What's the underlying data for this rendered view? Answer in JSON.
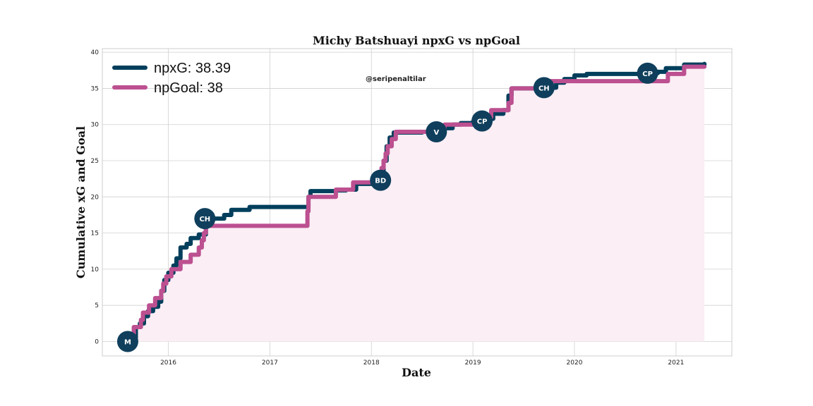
{
  "chart_data": {
    "type": "line",
    "title": "Michy Batshuayi npxG vs npGoal",
    "xlabel": "Date",
    "ylabel": "Cumulative xG and Goal",
    "credit": "@seripenaltilar",
    "xlim": [
      2015.35,
      2021.55
    ],
    "ylim": [
      -2,
      40.5
    ],
    "xticks": [
      2016,
      2017,
      2018,
      2019,
      2020,
      2021
    ],
    "yticks": [
      0,
      5,
      10,
      15,
      20,
      25,
      30,
      35,
      40
    ],
    "grid": true,
    "legend_position": "top-left",
    "series": [
      {
        "key": "npxg",
        "name": "npxG: 38.39",
        "color": "#003f5c",
        "points": [
          [
            2015.6,
            0
          ],
          [
            2015.65,
            0.5
          ],
          [
            2015.68,
            2.0
          ],
          [
            2015.72,
            2.5
          ],
          [
            2015.76,
            3.5
          ],
          [
            2015.8,
            4.2
          ],
          [
            2015.85,
            4.8
          ],
          [
            2015.9,
            5.5
          ],
          [
            2015.93,
            7.0
          ],
          [
            2015.96,
            8.5
          ],
          [
            2016.0,
            9.5
          ],
          [
            2016.05,
            10.5
          ],
          [
            2016.08,
            11.5
          ],
          [
            2016.12,
            13.0
          ],
          [
            2016.18,
            13.5
          ],
          [
            2016.22,
            14.3
          ],
          [
            2016.3,
            14.8
          ],
          [
            2016.37,
            17.0
          ],
          [
            2016.55,
            17.5
          ],
          [
            2016.62,
            18.2
          ],
          [
            2016.8,
            18.6
          ],
          [
            2017.38,
            20.0
          ],
          [
            2017.4,
            20.8
          ],
          [
            2017.65,
            20.9
          ],
          [
            2017.75,
            21.0
          ],
          [
            2017.85,
            21.8
          ],
          [
            2018.0,
            22.0
          ],
          [
            2018.05,
            22.3
          ],
          [
            2018.08,
            23.0
          ],
          [
            2018.12,
            25.0
          ],
          [
            2018.15,
            27.0
          ],
          [
            2018.18,
            28.2
          ],
          [
            2018.22,
            28.9
          ],
          [
            2018.5,
            29.0
          ],
          [
            2018.68,
            29.5
          ],
          [
            2018.8,
            30.0
          ],
          [
            2018.88,
            30.2
          ],
          [
            2019.0,
            30.4
          ],
          [
            2019.12,
            30.8
          ],
          [
            2019.2,
            31.5
          ],
          [
            2019.3,
            32.0
          ],
          [
            2019.35,
            34.0
          ],
          [
            2019.38,
            35.0
          ],
          [
            2019.7,
            35.1
          ],
          [
            2019.82,
            35.8
          ],
          [
            2019.9,
            36.3
          ],
          [
            2020.0,
            36.8
          ],
          [
            2020.12,
            37.0
          ],
          [
            2020.72,
            37.1
          ],
          [
            2020.82,
            37.3
          ],
          [
            2020.9,
            37.8
          ],
          [
            2021.08,
            38.3
          ],
          [
            2021.28,
            38.39
          ]
        ]
      },
      {
        "key": "npgoal",
        "name": "npGoal: 38",
        "color": "#bc5090",
        "points": [
          [
            2015.6,
            0
          ],
          [
            2015.66,
            2
          ],
          [
            2015.73,
            3
          ],
          [
            2015.75,
            4
          ],
          [
            2015.81,
            5
          ],
          [
            2015.87,
            6
          ],
          [
            2015.93,
            7
          ],
          [
            2015.95,
            8
          ],
          [
            2015.98,
            9
          ],
          [
            2016.03,
            10
          ],
          [
            2016.12,
            11
          ],
          [
            2016.22,
            12
          ],
          [
            2016.3,
            13
          ],
          [
            2016.33,
            14
          ],
          [
            2016.35,
            15
          ],
          [
            2016.37,
            16
          ],
          [
            2017.37,
            18
          ],
          [
            2017.38,
            20
          ],
          [
            2017.65,
            21
          ],
          [
            2017.82,
            22
          ],
          [
            2018.1,
            24
          ],
          [
            2018.12,
            25
          ],
          [
            2018.14,
            26
          ],
          [
            2018.16,
            27
          ],
          [
            2018.2,
            28
          ],
          [
            2018.24,
            29
          ],
          [
            2018.72,
            30
          ],
          [
            2019.15,
            31
          ],
          [
            2019.18,
            32
          ],
          [
            2019.35,
            33
          ],
          [
            2019.38,
            35
          ],
          [
            2019.7,
            35
          ],
          [
            2019.73,
            36
          ],
          [
            2020.92,
            37
          ],
          [
            2021.08,
            38
          ],
          [
            2021.28,
            38
          ]
        ]
      }
    ],
    "markers": [
      {
        "label": "M",
        "x": 2015.6,
        "y": 0
      },
      {
        "label": "CH",
        "x": 2016.36,
        "y": 17
      },
      {
        "label": "BD",
        "x": 2018.09,
        "y": 22.3
      },
      {
        "label": "V",
        "x": 2018.64,
        "y": 29
      },
      {
        "label": "CP",
        "x": 2019.09,
        "y": 30.5
      },
      {
        "label": "CH",
        "x": 2019.7,
        "y": 35.1
      },
      {
        "label": "CP",
        "x": 2020.72,
        "y": 37.1
      }
    ],
    "fill_color": "#fbeef5",
    "marker_color": "#0f3f5c",
    "grid_color": "#d0d0d0"
  }
}
